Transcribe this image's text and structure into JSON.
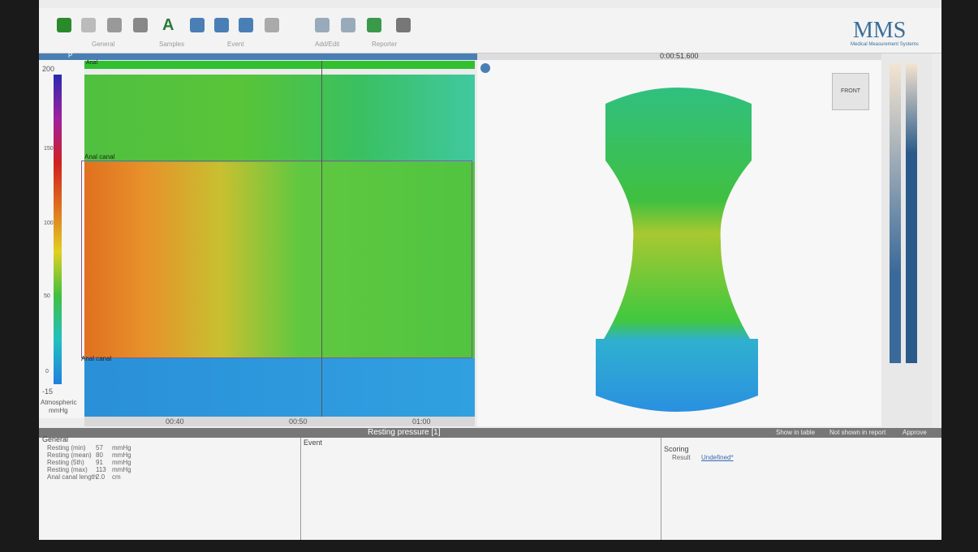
{
  "toolbar": {
    "groups": [
      "General",
      "Samples",
      "Event",
      "Add/Edit",
      "Reporter"
    ]
  },
  "logo": {
    "name": "MMS",
    "subtitle": "Medical Measurement Systems"
  },
  "scale": {
    "header": "P",
    "max": "200",
    "ticks": [
      "150",
      "100",
      "50",
      "0"
    ],
    "min": "-15",
    "unit_label": "Atmospheric",
    "unit": "mmHg"
  },
  "plot": {
    "top_label": "Anal",
    "region_labels": [
      "Anal canal",
      "Anal canal"
    ],
    "time_ticks": [
      "00:40",
      "00:50",
      "01:00"
    ]
  },
  "viewer": {
    "time": "0:00:51.600",
    "view_button": "FRONT"
  },
  "analysis": {
    "title": "Resting pressure [1]",
    "show_in_table": "Show in table",
    "not_shown": "Not shown in report",
    "approve": "Approve"
  },
  "general": {
    "title": "General",
    "rows": [
      [
        "Resting (min)",
        "57",
        "mmHg"
      ],
      [
        "Resting (mean)",
        "80",
        "mmHg"
      ],
      [
        "Resting (5th)",
        "91",
        "mmHg"
      ],
      [
        "Resting (max)",
        "113",
        "mmHg"
      ],
      [
        "Anal canal length",
        "2.0",
        "cm"
      ]
    ]
  },
  "event": {
    "title": "Event"
  },
  "scoring": {
    "title": "Scoring",
    "result_label": "Result",
    "result_value": "Undefined*"
  }
}
